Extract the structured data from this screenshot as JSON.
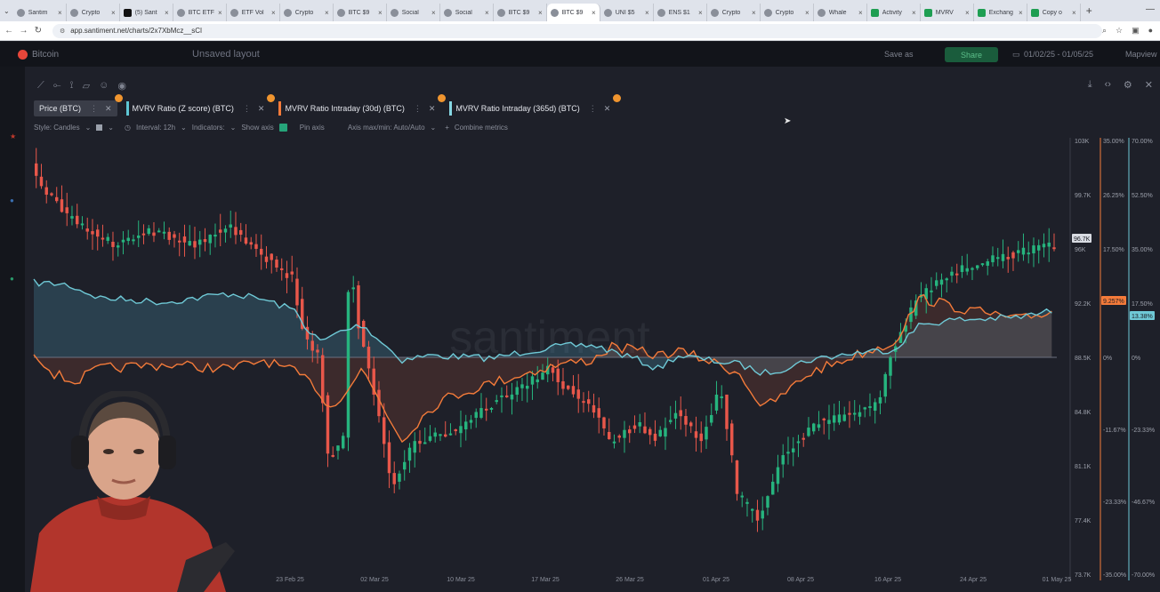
{
  "browser": {
    "tabs": [
      {
        "label": "Santim",
        "icon": "santiment-favicon"
      },
      {
        "label": "Crypto",
        "icon": "santiment-favicon"
      },
      {
        "label": "(5) Sant",
        "icon": "x-favicon"
      },
      {
        "label": "BTC ETF",
        "icon": "santiment-favicon"
      },
      {
        "label": "ETF Vol",
        "icon": "santiment-favicon"
      },
      {
        "label": "Crypto",
        "icon": "santiment-favicon"
      },
      {
        "label": "BTC $9",
        "icon": "santiment-favicon"
      },
      {
        "label": "Social",
        "icon": "santiment-favicon"
      },
      {
        "label": "Social",
        "icon": "santiment-favicon"
      },
      {
        "label": "BTC $9",
        "icon": "santiment-favicon"
      },
      {
        "label": "BTC $9",
        "icon": "santiment-favicon",
        "active": true
      },
      {
        "label": "UNI $5",
        "icon": "santiment-favicon"
      },
      {
        "label": "ENS $1",
        "icon": "santiment-favicon"
      },
      {
        "label": "Crypto",
        "icon": "santiment-favicon"
      },
      {
        "label": "Crypto",
        "icon": "santiment-favicon"
      },
      {
        "label": "Whale",
        "icon": "santiment-favicon"
      },
      {
        "label": "Activity",
        "icon": "sheets-favicon"
      },
      {
        "label": "MVRV",
        "icon": "sheets-favicon"
      },
      {
        "label": "Exchang",
        "icon": "sheets-favicon"
      },
      {
        "label": "Copy o",
        "icon": "sheets-favicon"
      }
    ],
    "url": "app.santiment.net/charts/2x7XbMcz__sCl"
  },
  "app": {
    "asset": "Bitcoin",
    "layout_title": "Unsaved layout",
    "save_as": "Save as",
    "share": "Share",
    "date_range": "01/02/25 - 01/05/25",
    "mapview": "Mapview"
  },
  "metrics": [
    {
      "label": "Price (BTC)",
      "color": "#9aa0ab",
      "selected": true
    },
    {
      "label": "MVRV Ratio (Z score) (BTC)",
      "color": "#5ec6d4"
    },
    {
      "label": "MVRV Ratio Intraday (30d) (BTC)",
      "color": "#f47b3a"
    },
    {
      "label": "MVRV Ratio Intraday (365d) (BTC)",
      "color": "#86d7e2"
    }
  ],
  "settings": {
    "style": "Style: Candles",
    "interval": "Interval: 12h",
    "indicators": "Indicators:",
    "show_axis": "Show axis",
    "pin_axis": "Pin axis",
    "axis_maxmin": "Axis max/min: Auto/Auto",
    "combine": "Combine metrics"
  },
  "watermark": "santiment",
  "chart_data": {
    "type": "candlestick",
    "x_ticks": [
      "23 Feb 25",
      "02 Mar 25",
      "10 Mar 25",
      "17 Mar 25",
      "26 Mar 25",
      "01 Apr 25",
      "08 Apr 25",
      "16 Apr 25",
      "24 Apr 25",
      "01 May 25"
    ],
    "price_axis": [
      "103K",
      "99.7K",
      "96K",
      "92.2K",
      "88.5K",
      "84.8K",
      "81.1K",
      "77.4K",
      "73.7K"
    ],
    "price_current": "96.7K",
    "mvrv30_axis": [
      "35.00%",
      "26.25%",
      "17.50%",
      "0%",
      "-11.67%",
      "-23.33%",
      "-35.00%"
    ],
    "mvrv30_current": "9.257%",
    "mvrv365_axis": [
      "70.00%",
      "52.50%",
      "35.00%",
      "17.50%",
      "0%",
      "-23.33%",
      "-46.67%",
      "-70.00%"
    ],
    "mvrv365_current": "13.38%",
    "colors": {
      "up": "#26b47e",
      "down": "#e8574a",
      "mvrv30": "#f47b3a",
      "mvrv365": "#6fc9d6"
    }
  }
}
